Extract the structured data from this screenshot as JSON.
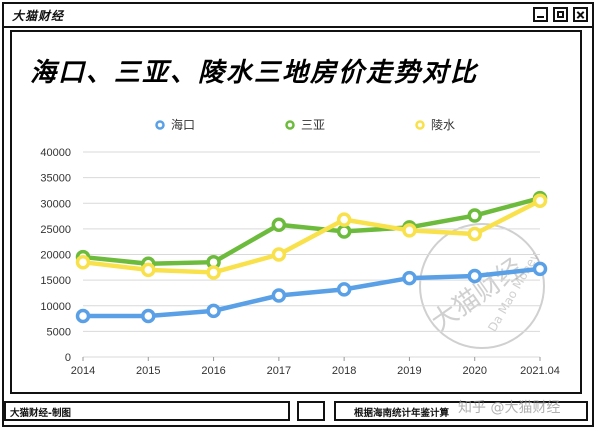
{
  "window": {
    "title": "大猫财经",
    "buttons": [
      "minimize",
      "maximize",
      "close"
    ]
  },
  "chart_title": "海口、三亚、陵水三地房价走势对比",
  "chart_data": {
    "type": "line",
    "title": "海口、三亚、陵水三地房价走势对比",
    "xlabel": "",
    "ylabel": "",
    "categories": [
      "2014",
      "2015",
      "2016",
      "2017",
      "2018",
      "2019",
      "2020",
      "2021.04"
    ],
    "ylim": [
      0,
      40000
    ],
    "yticks": [
      "0",
      "5000",
      "10000",
      "15000",
      "20000",
      "25000",
      "30000",
      "35000",
      "40000"
    ],
    "grid": true,
    "legend": "top-center",
    "series": [
      {
        "name": "海口",
        "color": "#5aa0e6",
        "values": [
          8000,
          8000,
          9000,
          12000,
          13200,
          15400,
          15800,
          17200
        ]
      },
      {
        "name": "三亚",
        "color": "#6cbb3c",
        "values": [
          19500,
          18200,
          18500,
          25800,
          24500,
          25300,
          27600,
          31000
        ]
      },
      {
        "name": "陵水",
        "color": "#f8e14b",
        "values": [
          18500,
          17000,
          16500,
          20000,
          26800,
          24700,
          24000,
          30500
        ]
      }
    ]
  },
  "footer": {
    "left": "大猫财经-制图",
    "right": "根据海南统计年鉴计算"
  },
  "watermark": {
    "stamp_main": "大猫财经",
    "stamp_sub": "Da Mao Money",
    "bottom": "知乎 @大猫财经"
  }
}
